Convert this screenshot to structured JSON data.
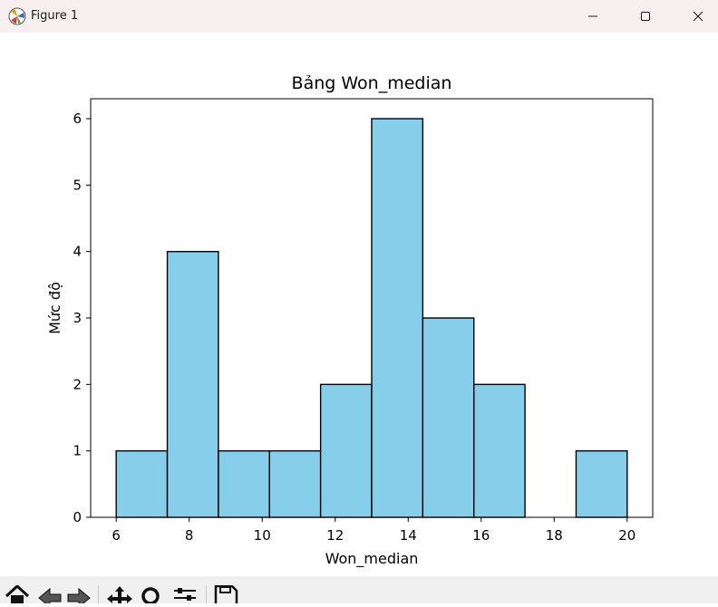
{
  "window": {
    "title": "Figure 1",
    "icon": "matplotlib-icon",
    "controls": [
      "minimize-icon",
      "maximize-icon",
      "close-icon"
    ]
  },
  "toolbar": {
    "tools": [
      "home-icon",
      "back-icon",
      "forward-icon",
      "pan-icon",
      "zoom-icon",
      "configure-subplots-icon",
      "save-icon"
    ]
  },
  "colors": {
    "bar_fill": "#87ceeb",
    "bar_edge": "#000000",
    "titlebar_bg": "#f8eff0",
    "toolbar_bg": "#f0f0f0"
  },
  "chart_data": {
    "type": "bar",
    "histogram": true,
    "title": "Bảng Won_median",
    "xlabel": "Won_median",
    "ylabel": "Mức độ",
    "bin_edges": [
      6,
      7.4,
      8.8,
      10.2,
      11.6,
      13,
      14.4,
      15.8,
      17.2,
      18.6,
      20
    ],
    "values": [
      1,
      4,
      1,
      1,
      2,
      6,
      3,
      2,
      0,
      1
    ],
    "xlim": [
      5.3,
      20.7
    ],
    "ylim": [
      0,
      6.3
    ],
    "xticks": [
      6,
      8,
      10,
      12,
      14,
      16,
      18,
      20
    ],
    "yticks": [
      0,
      1,
      2,
      3,
      4,
      5,
      6
    ],
    "grid": false,
    "legend": "none"
  }
}
